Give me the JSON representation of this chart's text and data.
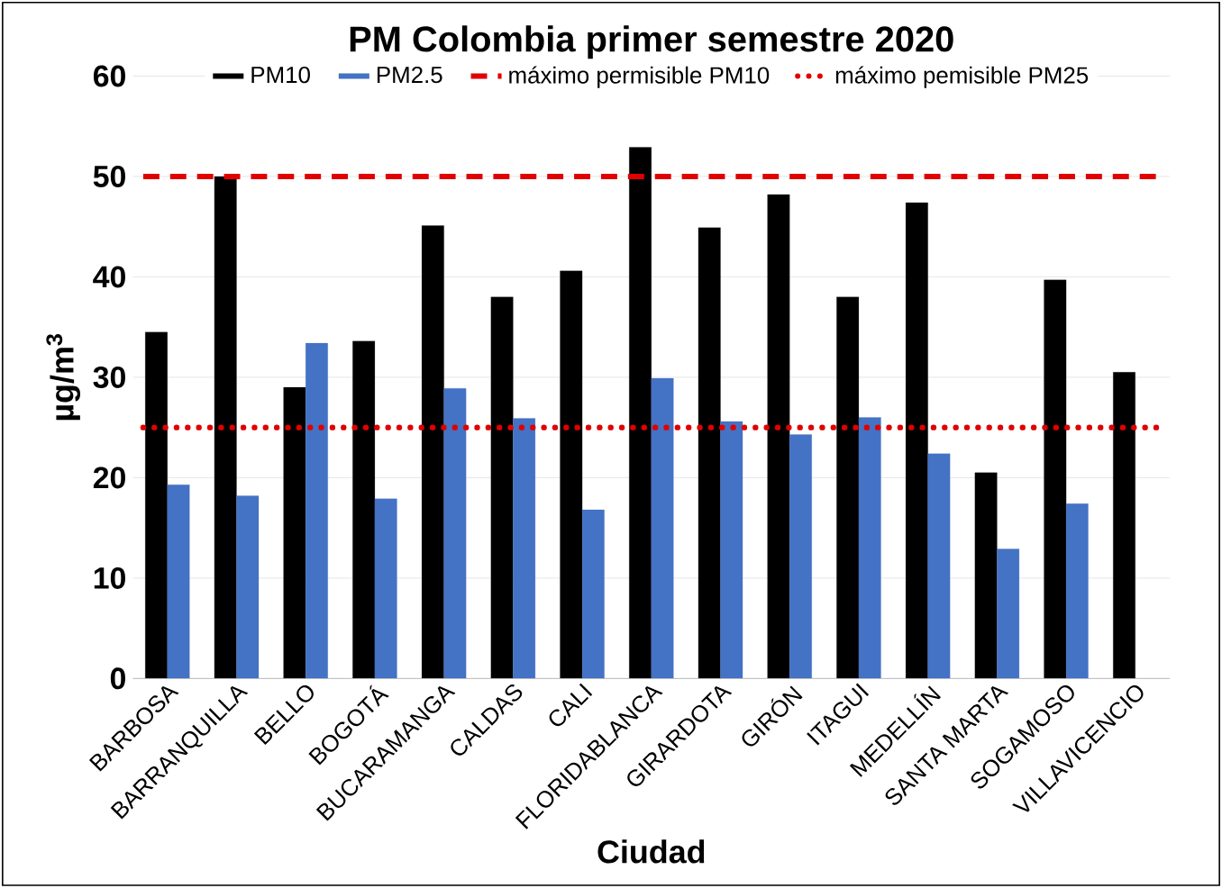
{
  "chart_data": {
    "type": "bar",
    "title": "PM Colombia primer semestre 2020",
    "xlabel": "Ciudad",
    "ylabel": "µg/m$^{3}$",
    "categories": [
      "BARBOSA",
      "BARRANQUILLA",
      "BELLO",
      "BOGOTÁ",
      "BUCARAMANGA",
      "CALDAS",
      "CALI",
      "FLORIDABLANCA",
      "GIRARDOTA",
      "GIRÓN",
      "ITAGUI",
      "MEDELLÍN",
      "SANTA MARTA",
      "SOGAMOSO",
      "VILLAVICENCIO"
    ],
    "series": [
      {
        "name": "PM10",
        "color": "#000000",
        "values": [
          34.5,
          50,
          29,
          33.6,
          45.1,
          38,
          40.6,
          52.9,
          44.9,
          48.2,
          38,
          47.4,
          20.5,
          39.7,
          30.5
        ]
      },
      {
        "name": "PM2.5",
        "color": "#4472c4",
        "values": [
          19.3,
          18.2,
          33.4,
          17.9,
          28.9,
          25.9,
          16.8,
          29.9,
          25.6,
          24.3,
          26,
          22.4,
          12.9,
          17.4,
          null
        ]
      }
    ],
    "ref_lines": [
      {
        "axis": "y",
        "value": 50,
        "label": "máximo permisible PM10",
        "color": "#e00000",
        "line_style": "dashed"
      },
      {
        "axis": "y",
        "value": 25,
        "label": "máximo pemisible PM25",
        "color": "#e00000",
        "line_style": "dotted"
      }
    ],
    "ylim": [
      0,
      60
    ],
    "yticks": [
      0,
      10,
      20,
      30,
      40,
      50,
      60
    ],
    "grid": "y",
    "legend": "top"
  }
}
